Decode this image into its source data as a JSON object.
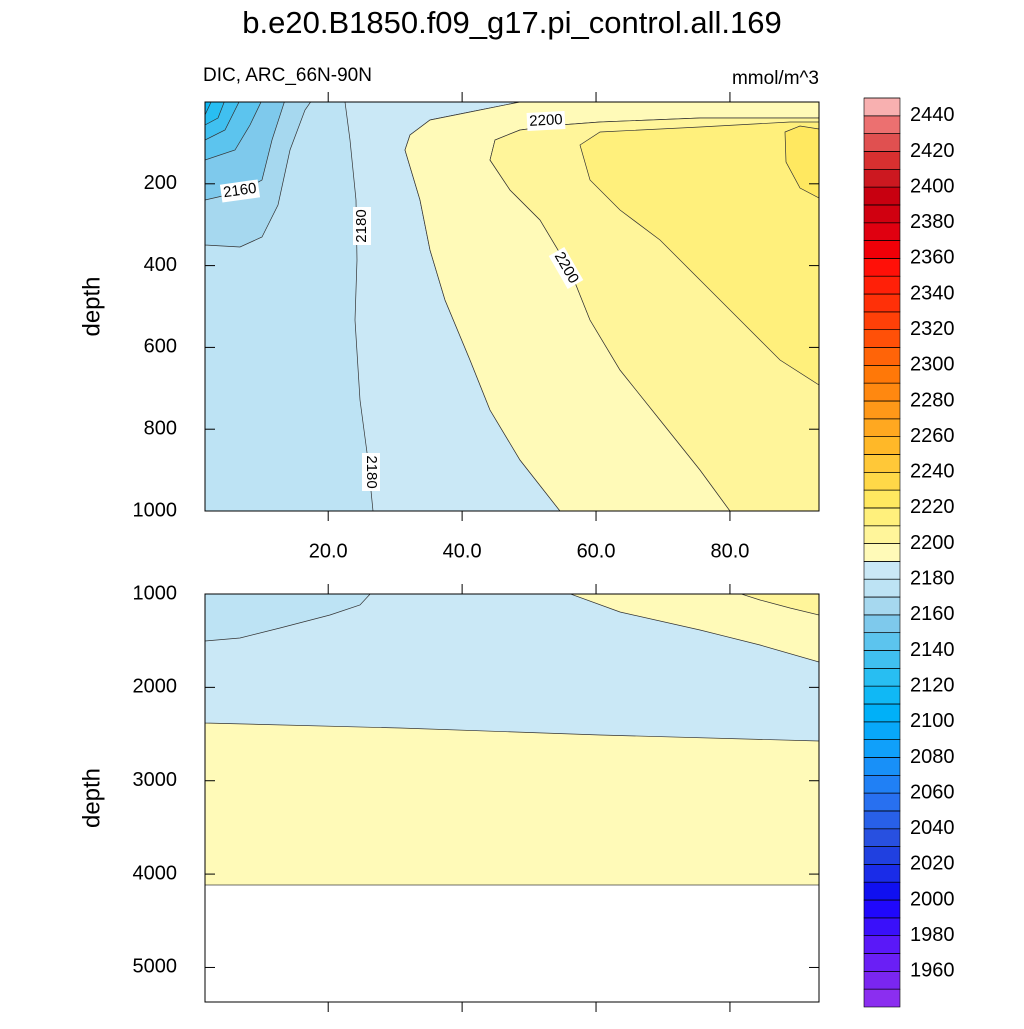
{
  "title": "b.e20.B1850.f09_g17.pi_control.all.169",
  "chart_data": [
    {
      "type": "contour",
      "subtitle": "DIC, ARC_66N-90N",
      "units": "mmol/m^3",
      "ylabel": "depth",
      "xlim": [
        1.6,
        93.3
      ],
      "ylim": [
        0,
        1000
      ],
      "xticks": [
        {
          "value": 20,
          "label": "20.0"
        },
        {
          "value": 40,
          "label": "40.0"
        },
        {
          "value": 60,
          "label": "60.0"
        },
        {
          "value": 80,
          "label": "80.0"
        }
      ],
      "yticks": [
        200,
        400,
        600,
        800,
        1000
      ],
      "contour_labels": [
        2160,
        2180,
        2180,
        2200,
        2200
      ]
    },
    {
      "type": "contour",
      "ylabel": "depth",
      "xlim": [
        1.6,
        93.3
      ],
      "ylim": [
        1000,
        5370
      ],
      "yticks": [
        1000,
        2000,
        3000,
        4000,
        5000
      ]
    }
  ],
  "colorbar": {
    "levels": [
      1950,
      1960,
      1970,
      1980,
      1990,
      2000,
      2010,
      2020,
      2030,
      2040,
      2050,
      2060,
      2070,
      2080,
      2090,
      2100,
      2110,
      2120,
      2130,
      2140,
      2150,
      2160,
      2170,
      2180,
      2190,
      2200,
      2210,
      2220,
      2230,
      2240,
      2250,
      2260,
      2270,
      2280,
      2290,
      2300,
      2310,
      2320,
      2330,
      2340,
      2350,
      2360,
      2370,
      2380,
      2390,
      2400,
      2410,
      2420,
      2430,
      2440,
      2450
    ],
    "colors": [
      "#8b2ef0",
      "#7a26f0",
      "#6a1ff5",
      "#5a18f8",
      "#3a10fa",
      "#2008fc",
      "#1010f0",
      "#1a2ce8",
      "#2040e0",
      "#2850e0",
      "#2860e8",
      "#2870f0",
      "#2080f5",
      "#1890f8",
      "#10a0fa",
      "#08a8fa",
      "#00b0f8",
      "#10b8f5",
      "#28bef2",
      "#40c0f0",
      "#5cc4ee",
      "#7ec9ec",
      "#a6d8ef",
      "#bde3f4",
      "#cae8f6",
      "#fffab8",
      "#fff59a",
      "#fff07c",
      "#ffe860",
      "#ffd848",
      "#ffc838",
      "#ffb828",
      "#ffa820",
      "#ff9818",
      "#ff8810",
      "#ff7808",
      "#ff6408",
      "#ff5008",
      "#ff4008",
      "#ff3008",
      "#ff2008",
      "#ff1008",
      "#f00008",
      "#e00010",
      "#d00010",
      "#c80010",
      "#cc1820",
      "#d83030",
      "#e05050",
      "#ec7070",
      "#f8b0b0"
    ]
  }
}
